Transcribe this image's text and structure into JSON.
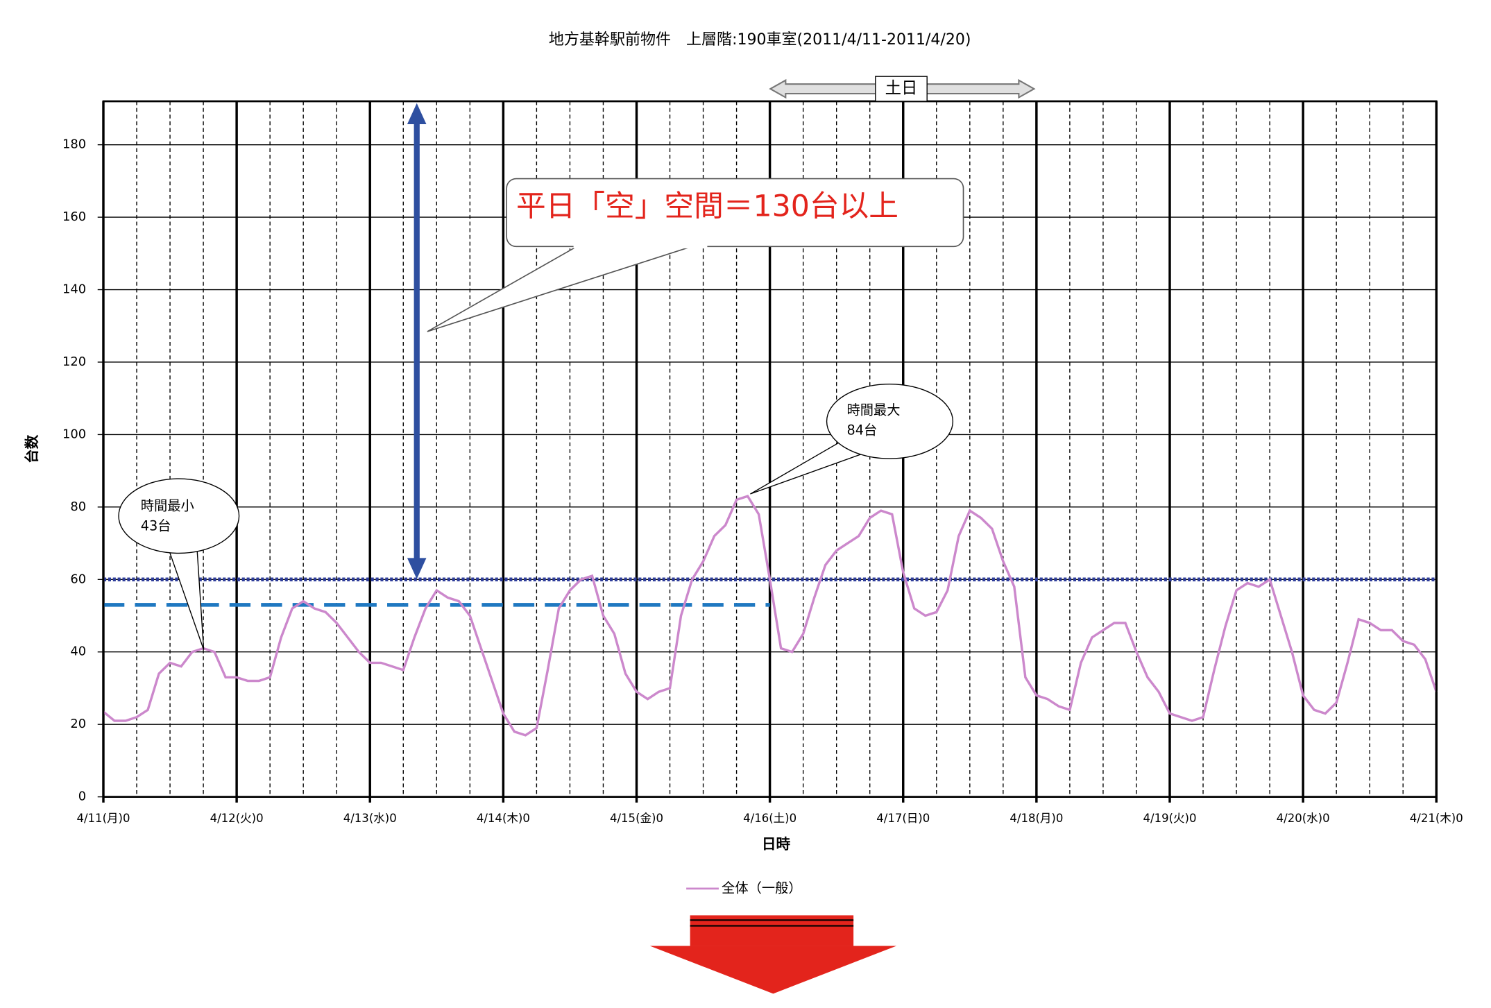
{
  "chart_data": {
    "type": "line",
    "title": "地方基幹駅前物件　上層階:190車室(2011/4/11-2011/4/20)",
    "x_label": "日時",
    "y_label": "台数",
    "xlim": [
      0,
      240
    ],
    "xticks": [
      {
        "value": 0,
        "label": "4/11(月)0"
      },
      {
        "value": 24,
        "label": "4/12(火)0"
      },
      {
        "value": 48,
        "label": "4/13(水)0"
      },
      {
        "value": 72,
        "label": "4/14(木)0"
      },
      {
        "value": 96,
        "label": "4/15(金)0"
      },
      {
        "value": 120,
        "label": "4/16(土)0"
      },
      {
        "value": 144,
        "label": "4/17(日)0"
      },
      {
        "value": 168,
        "label": "4/18(月)0"
      },
      {
        "value": 192,
        "label": "4/19(火)0"
      },
      {
        "value": 216,
        "label": "4/20(水)0"
      },
      {
        "value": 240,
        "label": "4/21(木)0"
      }
    ],
    "x_minor_ticks": [
      6,
      12,
      18,
      30,
      36,
      42,
      54,
      60,
      66,
      78,
      84,
      90,
      102,
      108,
      114,
      126,
      132,
      138,
      150,
      156,
      162,
      174,
      180,
      186,
      198,
      204,
      210,
      222,
      228,
      234
    ],
    "ylim": [
      0,
      192
    ],
    "yticks": [
      0,
      20,
      40,
      60,
      80,
      100,
      120,
      140,
      160,
      180
    ],
    "grid": true,
    "x": [
      0,
      2,
      4,
      6,
      8,
      10,
      12,
      14,
      16,
      18,
      20,
      22,
      24,
      26,
      28,
      30,
      32,
      34,
      36,
      38,
      40,
      42,
      44,
      46,
      48,
      50,
      52,
      54,
      56,
      58,
      60,
      62,
      64,
      66,
      68,
      70,
      72,
      74,
      76,
      78,
      80,
      82,
      84,
      86,
      88,
      90,
      92,
      94,
      96,
      98,
      100,
      102,
      104,
      106,
      108,
      110,
      112,
      114,
      116,
      118,
      120,
      122,
      124,
      126,
      128,
      130,
      132,
      134,
      136,
      138,
      140,
      142,
      144,
      146,
      148,
      150,
      152,
      154,
      156,
      158,
      160,
      162,
      164,
      166,
      168,
      170,
      172,
      174,
      176,
      178,
      180,
      182,
      184,
      186,
      188,
      190,
      192,
      194,
      196,
      198,
      200,
      202,
      204,
      206,
      208,
      210,
      212,
      214,
      216,
      218,
      220,
      222,
      224,
      226,
      228,
      230,
      232,
      234,
      236,
      238,
      240
    ],
    "series": [
      {
        "name": "全体（一般）",
        "color": "#cc88cc",
        "values": [
          23.5,
          21,
          21,
          22,
          24,
          34,
          37,
          36,
          40,
          41,
          40,
          33,
          33,
          32,
          32,
          33,
          44,
          52,
          54,
          52,
          51,
          48,
          44,
          40,
          37,
          37,
          36,
          35,
          44,
          52,
          57,
          55,
          54,
          50,
          41,
          32,
          23,
          18,
          17,
          19,
          35,
          52,
          57,
          60,
          61,
          50,
          45,
          34,
          29,
          27,
          29,
          30,
          50,
          60,
          65,
          72,
          75,
          82,
          83,
          78,
          60,
          41,
          40,
          45,
          55,
          64,
          68,
          70,
          72,
          77,
          79,
          78,
          62,
          52,
          50,
          51,
          57,
          72,
          79,
          77,
          74,
          65,
          58,
          33,
          28,
          27,
          25,
          24,
          37,
          44,
          46,
          48,
          48,
          40,
          33,
          29,
          23,
          22,
          21,
          22,
          35,
          47,
          57,
          59,
          58,
          60,
          50,
          40,
          28,
          24,
          23,
          26,
          37,
          49,
          48,
          46,
          46,
          43,
          42,
          38,
          29
        ]
      }
    ],
    "reference_lines": [
      {
        "value": 60,
        "style": "dotted",
        "color": "#2e3d9a"
      },
      {
        "value": 53,
        "style": "dashed",
        "color": "#1f78c1",
        "xrange": [
          0,
          120
        ]
      }
    ],
    "annotations": {
      "headline": "平日「空」空間＝130台以上",
      "min_note": [
        "時間最小",
        "43台"
      ],
      "max_note": [
        "時間最大",
        "84台"
      ],
      "weekend": "土日"
    }
  }
}
